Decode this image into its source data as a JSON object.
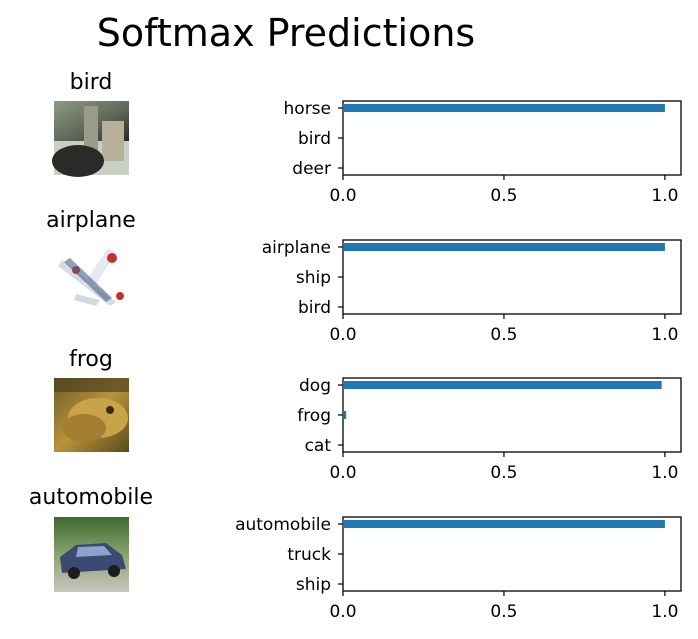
{
  "figure_title": "Softmax Predictions",
  "colors": {
    "bar": "#1f77b4",
    "axis": "#000000"
  },
  "chart_data": [
    {
      "type": "bar",
      "orientation": "horizontal",
      "image_label": "bird",
      "image_icon": "bird-thumbnail",
      "categories": [
        "horse",
        "bird",
        "deer"
      ],
      "values": [
        1.0,
        0.0,
        0.0
      ],
      "xlim": [
        0,
        1.05
      ],
      "xticks": [
        "0.0",
        "0.5",
        "1.0"
      ],
      "xtick_values": [
        0,
        0.5,
        1.0
      ]
    },
    {
      "type": "bar",
      "orientation": "horizontal",
      "image_label": "airplane",
      "image_icon": "airplane-thumbnail",
      "categories": [
        "airplane",
        "ship",
        "bird"
      ],
      "values": [
        1.0,
        0.0,
        0.0
      ],
      "xlim": [
        0,
        1.05
      ],
      "xticks": [
        "0.0",
        "0.5",
        "1.0"
      ],
      "xtick_values": [
        0,
        0.5,
        1.0
      ]
    },
    {
      "type": "bar",
      "orientation": "horizontal",
      "image_label": "frog",
      "image_icon": "frog-thumbnail",
      "categories": [
        "dog",
        "frog",
        "cat"
      ],
      "values": [
        0.99,
        0.01,
        0.0
      ],
      "xlim": [
        0,
        1.05
      ],
      "xticks": [
        "0.0",
        "0.5",
        "1.0"
      ],
      "xtick_values": [
        0,
        0.5,
        1.0
      ]
    },
    {
      "type": "bar",
      "orientation": "horizontal",
      "image_label": "automobile",
      "image_icon": "automobile-thumbnail",
      "categories": [
        "automobile",
        "truck",
        "ship"
      ],
      "values": [
        1.0,
        0.0,
        0.0
      ],
      "xlim": [
        0,
        1.05
      ],
      "xticks": [
        "0.0",
        "0.5",
        "1.0"
      ],
      "xtick_values": [
        0,
        0.5,
        1.0
      ]
    }
  ]
}
